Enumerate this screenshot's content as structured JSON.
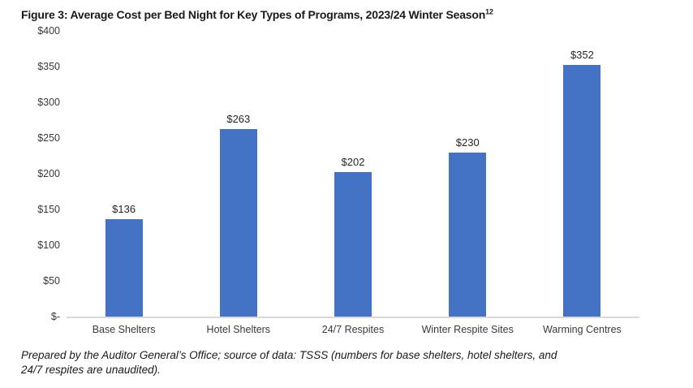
{
  "figure": {
    "title": "Figure 3: Average Cost per Bed Night for Key Types of Programs, 2023/24 Winter Season",
    "title_superscript": "12",
    "footnote_lines": [
      "Prepared by the Auditor General’s Office; source of data: TSSS (numbers for base shelters, hotel shelters, and",
      "24/7 respites are unaudited)."
    ]
  },
  "chart_data": {
    "type": "bar",
    "title": "Figure 3: Average Cost per Bed Night for Key Types of Programs, 2023/24 Winter Season",
    "categories": [
      "Base Shelters",
      "Hotel Shelters",
      "24/7 Respites",
      "Winter Respite Sites",
      "Warming Centres"
    ],
    "values": [
      136,
      263,
      202,
      230,
      352
    ],
    "value_labels": [
      "$136",
      "$263",
      "$202",
      "$230",
      "$352"
    ],
    "xlabel": "",
    "ylabel": "",
    "ylim": [
      0,
      400
    ],
    "ytick_interval": 50,
    "ytick_labels": [
      "$400",
      "$350",
      "$300",
      "$250",
      "$200",
      "$150",
      "$100",
      "$50",
      "$-"
    ],
    "grid": false,
    "legend": "none",
    "bar_color": "#4472C4",
    "axis_line_color": "#D9D9D9"
  }
}
